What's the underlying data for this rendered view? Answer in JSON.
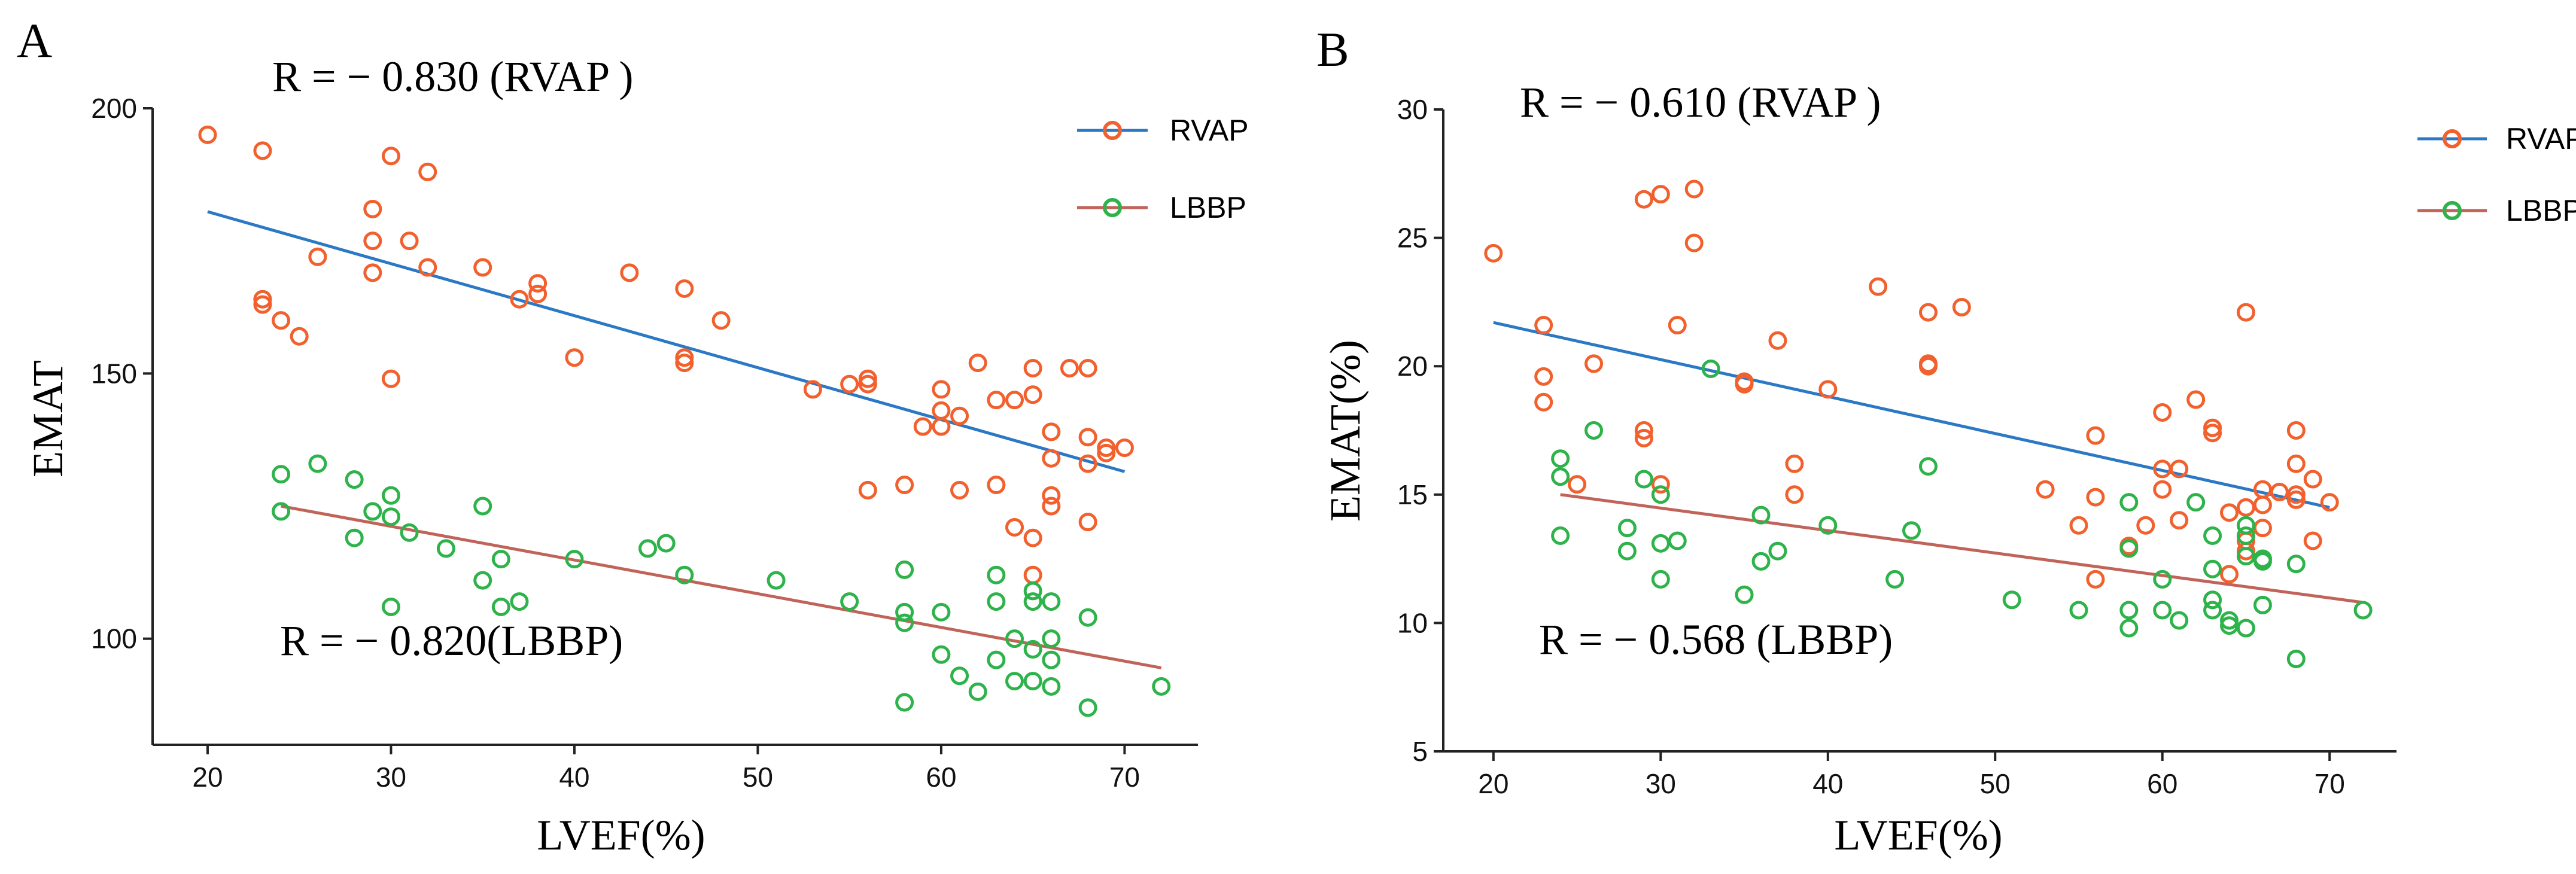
{
  "colors": {
    "rvap": "#F2602D",
    "lbbp": "#2DB34A",
    "rvap_line": "#2B78C4",
    "lbbp_line": "#C0645A",
    "axis": "#222222"
  },
  "chart_data": [
    {
      "type": "scatter",
      "panel_label": "A",
      "xlabel": "LVEF(%)",
      "ylabel": "EMAT",
      "xlim": [
        17,
        74
      ],
      "ylim": [
        80,
        200
      ],
      "xticks": [
        "20",
        "30",
        "40",
        "50",
        "60",
        "70"
      ],
      "yticks": [
        "100",
        "150",
        "200"
      ],
      "legend": [
        "RVAP",
        "LBBP"
      ],
      "annotations": [
        "R = − 0.830 (RVAP )",
        "R = − 0.820(LBBP)"
      ],
      "series": [
        {
          "name": "RVAP",
          "fit": [
            [
              20,
              180.5
            ],
            [
              70,
              131.5
            ]
          ],
          "points": [
            [
              20,
              195
            ],
            [
              23,
              192
            ],
            [
              23,
              164
            ],
            [
              23,
              163
            ],
            [
              24,
              160
            ],
            [
              25,
              157
            ],
            [
              26,
              172
            ],
            [
              29,
              181
            ],
            [
              29,
              175
            ],
            [
              29,
              169
            ],
            [
              30,
              191
            ],
            [
              30,
              149
            ],
            [
              31,
              175
            ],
            [
              32,
              188
            ],
            [
              32,
              170
            ],
            [
              35,
              170
            ],
            [
              37,
              164
            ],
            [
              38,
              167
            ],
            [
              38,
              165
            ],
            [
              40,
              153
            ],
            [
              43,
              169
            ],
            [
              46,
              166
            ],
            [
              46,
              153
            ],
            [
              46,
              152
            ],
            [
              48,
              160
            ],
            [
              53,
              147
            ],
            [
              55,
              148
            ],
            [
              56,
              149
            ],
            [
              56,
              148
            ],
            [
              56,
              128
            ],
            [
              58,
              129
            ],
            [
              59,
              140
            ],
            [
              60,
              147
            ],
            [
              60,
              143
            ],
            [
              60,
              140
            ],
            [
              61,
              142
            ],
            [
              61,
              128
            ],
            [
              62,
              152
            ],
            [
              63,
              145
            ],
            [
              63,
              129
            ],
            [
              64,
              145
            ],
            [
              64,
              121
            ],
            [
              65,
              151
            ],
            [
              65,
              146
            ],
            [
              65,
              119
            ],
            [
              65,
              112
            ],
            [
              66,
              139
            ],
            [
              66,
              134
            ],
            [
              66,
              127
            ],
            [
              66,
              125
            ],
            [
              67,
              151
            ],
            [
              68,
              151
            ],
            [
              68,
              138
            ],
            [
              68,
              133
            ],
            [
              68,
              122
            ],
            [
              69,
              136
            ],
            [
              69,
              135
            ],
            [
              70,
              136
            ]
          ]
        },
        {
          "name": "LBBP",
          "fit": [
            [
              24,
              125
            ],
            [
              72,
              94.5
            ]
          ],
          "points": [
            [
              24,
              131
            ],
            [
              24,
              124
            ],
            [
              26,
              133
            ],
            [
              28,
              130
            ],
            [
              28,
              119
            ],
            [
              29,
              124
            ],
            [
              30,
              127
            ],
            [
              30,
              123
            ],
            [
              30,
              106
            ],
            [
              31,
              120
            ],
            [
              33,
              117
            ],
            [
              35,
              125
            ],
            [
              35,
              111
            ],
            [
              36,
              115
            ],
            [
              36,
              106
            ],
            [
              37,
              107
            ],
            [
              40,
              115
            ],
            [
              44,
              117
            ],
            [
              45,
              118
            ],
            [
              46,
              112
            ],
            [
              51,
              111
            ],
            [
              55,
              107
            ],
            [
              58,
              113
            ],
            [
              58,
              105
            ],
            [
              58,
              103
            ],
            [
              58,
              88
            ],
            [
              60,
              105
            ],
            [
              60,
              97
            ],
            [
              61,
              93
            ],
            [
              62,
              90
            ],
            [
              63,
              112
            ],
            [
              63,
              107
            ],
            [
              63,
              96
            ],
            [
              64,
              100
            ],
            [
              64,
              92
            ],
            [
              65,
              109
            ],
            [
              65,
              107
            ],
            [
              65,
              98
            ],
            [
              65,
              92
            ],
            [
              66,
              107
            ],
            [
              66,
              100
            ],
            [
              66,
              96
            ],
            [
              66,
              91
            ],
            [
              68,
              104
            ],
            [
              68,
              87
            ],
            [
              72,
              91
            ]
          ]
        }
      ]
    },
    {
      "type": "scatter",
      "panel_label": "B",
      "xlabel": "LVEF(%)",
      "ylabel": "EMAT(%)",
      "xlim": [
        17,
        74
      ],
      "ylim": [
        5,
        30
      ],
      "xticks": [
        "20",
        "30",
        "40",
        "50",
        "60",
        "70"
      ],
      "yticks": [
        "5",
        "10",
        "15",
        "20",
        "25",
        "30"
      ],
      "legend": [
        "RVAP",
        "LBBP"
      ],
      "annotations": [
        "R = − 0.610 (RVAP )",
        "R = − 0.568 (LBBP)"
      ],
      "series": [
        {
          "name": "RVAP",
          "fit": [
            [
              20,
              21.7
            ],
            [
              70,
              14.5
            ]
          ],
          "points": [
            [
              20,
              24.4
            ],
            [
              23,
              21.6
            ],
            [
              23,
              19.6
            ],
            [
              23,
              18.6
            ],
            [
              25,
              15.4
            ],
            [
              26,
              20.1
            ],
            [
              29,
              26.5
            ],
            [
              29,
              17.5
            ],
            [
              29,
              17.2
            ],
            [
              30,
              26.7
            ],
            [
              30,
              15.4
            ],
            [
              31,
              21.6
            ],
            [
              32,
              26.9
            ],
            [
              32,
              24.8
            ],
            [
              35,
              19.4
            ],
            [
              35,
              19.3
            ],
            [
              37,
              21
            ],
            [
              38,
              16.2
            ],
            [
              38,
              15
            ],
            [
              40,
              19.1
            ],
            [
              43,
              23.1
            ],
            [
              46,
              22.1
            ],
            [
              46,
              20.1
            ],
            [
              46,
              20
            ],
            [
              48,
              22.3
            ],
            [
              53,
              15.2
            ],
            [
              55,
              13.8
            ],
            [
              56,
              17.3
            ],
            [
              56,
              14.9
            ],
            [
              56,
              11.7
            ],
            [
              58,
              13
            ],
            [
              59,
              13.8
            ],
            [
              60,
              18.2
            ],
            [
              60,
              16
            ],
            [
              60,
              15.2
            ],
            [
              61,
              16
            ],
            [
              61,
              14
            ],
            [
              62,
              18.7
            ],
            [
              63,
              17.6
            ],
            [
              63,
              17.4
            ],
            [
              64,
              14.3
            ],
            [
              64,
              11.9
            ],
            [
              65,
              22.1
            ],
            [
              65,
              14.5
            ],
            [
              65,
              13.2
            ],
            [
              65,
              12.8
            ],
            [
              66,
              15.2
            ],
            [
              66,
              14.6
            ],
            [
              66,
              13.7
            ],
            [
              66,
              12.5
            ],
            [
              67,
              15.1
            ],
            [
              68,
              17.5
            ],
            [
              68,
              16.2
            ],
            [
              68,
              15
            ],
            [
              68,
              14.8
            ],
            [
              69,
              15.6
            ],
            [
              69,
              13.2
            ],
            [
              70,
              14.7
            ]
          ]
        },
        {
          "name": "LBBP",
          "fit": [
            [
              24,
              15
            ],
            [
              72,
              10.8
            ]
          ],
          "points": [
            [
              24,
              16.4
            ],
            [
              24,
              15.7
            ],
            [
              24,
              13.4
            ],
            [
              26,
              17.5
            ],
            [
              28,
              13.7
            ],
            [
              28,
              12.8
            ],
            [
              29,
              15.6
            ],
            [
              30,
              15
            ],
            [
              30,
              13.1
            ],
            [
              30,
              11.7
            ],
            [
              31,
              13.2
            ],
            [
              33,
              19.9
            ],
            [
              35,
              11.1
            ],
            [
              36,
              14.2
            ],
            [
              36,
              12.4
            ],
            [
              37,
              12.8
            ],
            [
              40,
              13.8
            ],
            [
              44,
              11.7
            ],
            [
              45,
              13.6
            ],
            [
              46,
              16.1
            ],
            [
              51,
              10.9
            ],
            [
              55,
              10.5
            ],
            [
              58,
              14.7
            ],
            [
              58,
              12.9
            ],
            [
              58,
              10.5
            ],
            [
              58,
              9.8
            ],
            [
              60,
              11.7
            ],
            [
              60,
              10.5
            ],
            [
              61,
              10.1
            ],
            [
              62,
              14.7
            ],
            [
              63,
              13.4
            ],
            [
              63,
              12.1
            ],
            [
              63,
              10.9
            ],
            [
              63,
              10.5
            ],
            [
              64,
              10.1
            ],
            [
              64,
              9.9
            ],
            [
              65,
              13.8
            ],
            [
              65,
              13.4
            ],
            [
              65,
              12.6
            ],
            [
              65,
              9.8
            ],
            [
              66,
              12.5
            ],
            [
              66,
              12.4
            ],
            [
              66,
              10.7
            ],
            [
              68,
              12.3
            ],
            [
              68,
              8.6
            ],
            [
              72,
              10.5
            ]
          ]
        }
      ]
    }
  ]
}
